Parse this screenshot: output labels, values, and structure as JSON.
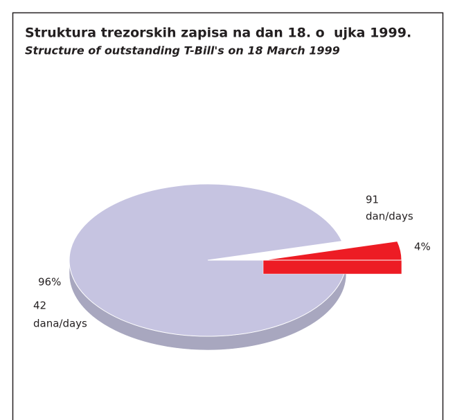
{
  "chart_data": {
    "type": "pie",
    "title": "Struktura trezorskih zapisa na dan 18. o  ujka 1999.",
    "subtitle": "Structure of outstanding T-Bill's on 18 March 1999",
    "categories": [
      [
        "42",
        "dana/days"
      ],
      [
        "91",
        "dan/days"
      ]
    ],
    "values": [
      96,
      4
    ],
    "value_labels": [
      "96%",
      "4%"
    ],
    "colors": [
      "#c6c4e1",
      "#ed1c24"
    ]
  }
}
